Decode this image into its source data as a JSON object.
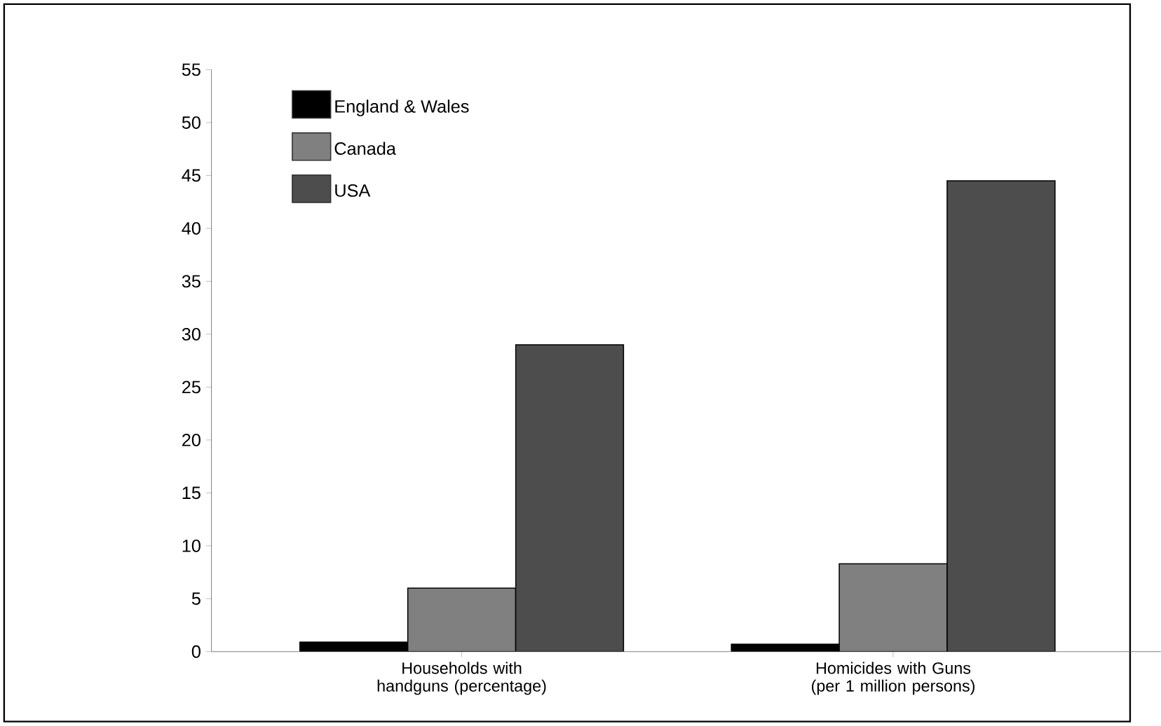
{
  "chart_data": {
    "type": "bar",
    "categories": [
      "Households with handguns (percentage)",
      "Homicides with Guns (per 1 million persons)"
    ],
    "series": [
      {
        "name": "England & Wales",
        "color": "#000000",
        "values": [
          0.9,
          0.7
        ]
      },
      {
        "name": "Canada",
        "color": "#808080",
        "values": [
          6,
          8.3
        ]
      },
      {
        "name": "USA",
        "color": "#4d4d4d",
        "values": [
          29,
          44.5
        ]
      }
    ],
    "ylim": [
      0,
      55
    ],
    "yticks": [
      0,
      5,
      10,
      15,
      20,
      25,
      30,
      35,
      40,
      45,
      50,
      55
    ],
    "grid": false,
    "legend": "top left"
  }
}
